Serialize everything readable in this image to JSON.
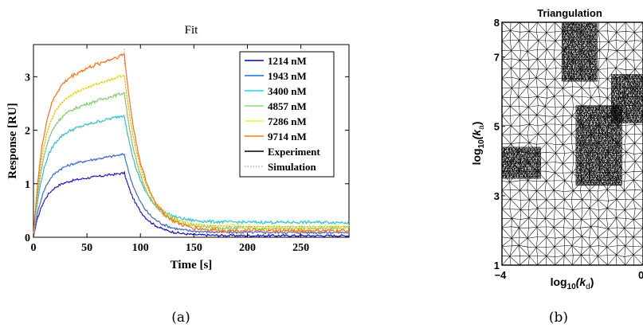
{
  "panel_a": {
    "title": "Fit",
    "xlabel": "Time [s]",
    "ylabel": "Response [RU]",
    "caption": "(a)",
    "legend": [
      {
        "label": "1214 nM",
        "color": "#0000cc"
      },
      {
        "label": "1943 nM",
        "color": "#1a6fdc"
      },
      {
        "label": "3400 nM",
        "color": "#19d6e6"
      },
      {
        "label": "4857 nM",
        "color": "#7fe07a"
      },
      {
        "label": "7286 nM",
        "color": "#f2f23a"
      },
      {
        "label": "9714 nM",
        "color": "#ff7a12"
      },
      {
        "label": "Experiment",
        "color": "#000000"
      },
      {
        "label": "Simulation",
        "color": "#c86a6a"
      }
    ],
    "xtick_labels": [
      "0",
      "50",
      "100",
      "150",
      "200",
      "250"
    ],
    "ytick_labels": [
      "0",
      "1",
      "2",
      "3"
    ]
  },
  "panel_b": {
    "title": "Triangulation",
    "xlabel_main": "log",
    "xlabel_sub": "10",
    "xlabel_var": "(k",
    "xlabel_varsub": "d",
    "xlabel_close": ")",
    "ylabel_main": "log",
    "ylabel_sub": "10",
    "ylabel_var": "(k",
    "ylabel_varsub": "a",
    "ylabel_close": ")",
    "caption": "(b)",
    "xtick_labels": [
      "−4",
      "0"
    ],
    "ytick_labels": [
      "1",
      "3",
      "5",
      "7",
      "8"
    ]
  },
  "chart_data": [
    {
      "type": "line",
      "title": "Fit",
      "xlabel": "Time [s]",
      "ylabel": "Response [RU]",
      "xlim": [
        0,
        295
      ],
      "ylim": [
        0,
        3.6
      ],
      "legend_position": "top-right",
      "grid": false,
      "injection_end_s": 85,
      "series": [
        {
          "name": "1214 nM",
          "color": "#0000cc",
          "plateau": 1.2,
          "final": 0.03
        },
        {
          "name": "1943 nM",
          "color": "#1a6fdc",
          "plateau": 1.55,
          "final": 0.09
        },
        {
          "name": "3400 nM",
          "color": "#19d6e6",
          "plateau": 2.28,
          "final": 0.28
        },
        {
          "name": "4857 nM",
          "color": "#7fe07a",
          "plateau": 2.7,
          "final": 0.17
        },
        {
          "name": "7286 nM",
          "color": "#f2f23a",
          "plateau": 3.03,
          "final": 0.2
        },
        {
          "name": "9714 nM",
          "color": "#ff7a12",
          "plateau": 3.42,
          "final": 0.12
        }
      ],
      "annotations": [
        "Experiment",
        "Simulation"
      ]
    },
    {
      "type": "triangulation",
      "title": "Triangulation",
      "xlabel": "log10(kd)",
      "ylabel": "log10(ka)",
      "xlim": [
        -4,
        0
      ],
      "ylim": [
        1,
        8
      ],
      "refined_regions": [
        {
          "x": [
            -4,
            -2.9
          ],
          "y": [
            3.5,
            4.4
          ]
        },
        {
          "x": [
            -2.3,
            -1.3
          ],
          "y": [
            6.3,
            8
          ]
        },
        {
          "x": [
            -1.9,
            -0.6
          ],
          "y": [
            3.3,
            5.6
          ]
        },
        {
          "x": [
            -0.9,
            0
          ],
          "y": [
            5.1,
            6.5
          ]
        }
      ]
    }
  ]
}
